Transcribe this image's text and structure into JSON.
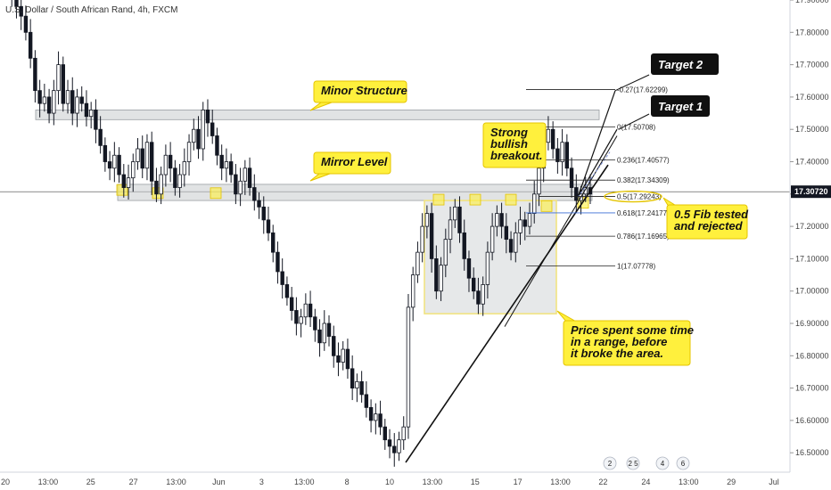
{
  "symbol_title": "U.S. Dollar / South African Rand, 4h, FXCM",
  "colors": {
    "candle": "#131722",
    "zone_fill": "#c8ccce",
    "zone_stroke": "#9a9ea3",
    "callout_fill": "#fff03d",
    "callout_stroke": "#e4c400",
    "range_stroke": "#f1e27a",
    "target_fill": "#101010",
    "blue_fib": "#3a6cd6",
    "price_tag": "#131722"
  },
  "chart_data": {
    "type": "candlestick",
    "title": "U.S. Dollar / South African Rand, 4h, FXCM",
    "x_axis_labels": [
      "20",
      "13:00",
      "25",
      "27",
      "13:00",
      "Jun",
      "3",
      "13:00",
      "8",
      "10",
      "13:00",
      "15",
      "17",
      "13:00",
      "22",
      "24",
      "13:00",
      "29",
      "Jul"
    ],
    "y_axis_labels": [
      "17.90000",
      "17.80000",
      "17.70000",
      "17.60000",
      "17.50000",
      "17.40000",
      "17.30000",
      "17.20000",
      "17.10000",
      "17.00000",
      "16.90000",
      "16.80000",
      "16.70000",
      "16.60000",
      "16.50000"
    ],
    "y_ticks": [
      17.9,
      17.8,
      17.7,
      17.6,
      17.5,
      17.4,
      17.3,
      17.2,
      17.1,
      17.0,
      16.9,
      16.8,
      16.7,
      16.6,
      16.5
    ],
    "ylim": [
      16.44,
      17.9
    ],
    "current_price": "17.30720",
    "current_price_value": 17.3072,
    "candles_close": [
      17.96,
      17.91,
      17.88,
      17.85,
      17.8,
      17.72,
      17.62,
      17.58,
      17.6,
      17.55,
      17.62,
      17.7,
      17.58,
      17.62,
      17.55,
      17.6,
      17.58,
      17.54,
      17.56,
      17.5,
      17.45,
      17.4,
      17.38,
      17.42,
      17.36,
      17.32,
      17.35,
      17.4,
      17.44,
      17.38,
      17.46,
      17.34,
      17.3,
      17.36,
      17.42,
      17.38,
      17.32,
      17.36,
      17.4,
      17.46,
      17.5,
      17.44,
      17.56,
      17.52,
      17.48,
      17.42,
      17.38,
      17.4,
      17.36,
      17.3,
      17.34,
      17.38,
      17.32,
      17.28,
      17.26,
      17.22,
      17.18,
      17.12,
      17.06,
      17.02,
      16.98,
      16.94,
      16.9,
      16.92,
      16.96,
      16.92,
      16.88,
      16.84,
      16.9,
      16.86,
      16.8,
      16.78,
      16.82,
      16.76,
      16.7,
      16.72,
      16.68,
      16.64,
      16.6,
      16.62,
      16.58,
      16.54,
      16.52,
      16.5,
      16.54,
      16.58,
      16.95,
      17.05,
      17.12,
      17.2,
      17.24,
      17.1,
      17.0,
      17.08,
      17.16,
      17.22,
      17.26,
      17.18,
      17.1,
      17.04,
      17.0,
      16.96,
      17.02,
      17.12,
      17.2,
      17.24,
      17.2,
      17.16,
      17.12,
      17.18,
      17.22,
      17.2,
      17.24,
      17.3,
      17.38,
      17.46,
      17.5,
      17.44,
      17.4,
      17.46,
      17.38,
      17.32,
      17.28,
      17.3,
      17.32,
      17.3
    ],
    "support_zones": [
      {
        "name": "minor_structure",
        "top": 17.56,
        "bottom": 17.53
      },
      {
        "name": "mirror_level",
        "top": 17.33,
        "bottom": 17.28
      }
    ],
    "range_box": {
      "top": 17.28,
      "bottom": 16.93
    },
    "fib_levels": [
      {
        "label": "-0.27(17.62299)",
        "value": 17.62299
      },
      {
        "label": "0(17.50708)",
        "value": 17.50708
      },
      {
        "label": "0.236(17.40577)",
        "value": 17.40577
      },
      {
        "label": "0.382(17.34309)",
        "value": 17.34309
      },
      {
        "label": "0.5(17.29243)",
        "value": 17.29243
      },
      {
        "label": "0.618(17.24177)",
        "value": 17.24177
      },
      {
        "label": "0.786(17.16965)",
        "value": 17.16965
      },
      {
        "label": "1(17.07778)",
        "value": 17.07778
      }
    ],
    "annotations": {
      "minor_structure": "Minor Structure",
      "mirror_level": "Mirror Level",
      "strong_breakout": [
        "Strong",
        "bullish",
        "breakout."
      ],
      "range_note": [
        "Price spent some time",
        "in a range, before",
        "it broke the area."
      ],
      "fib_note": [
        "0.5 Fib tested",
        "and rejected"
      ],
      "target_1": "Target 1",
      "target_2": "Target 2"
    },
    "event_icons": [
      "2",
      "2 5",
      "4",
      "6"
    ]
  }
}
